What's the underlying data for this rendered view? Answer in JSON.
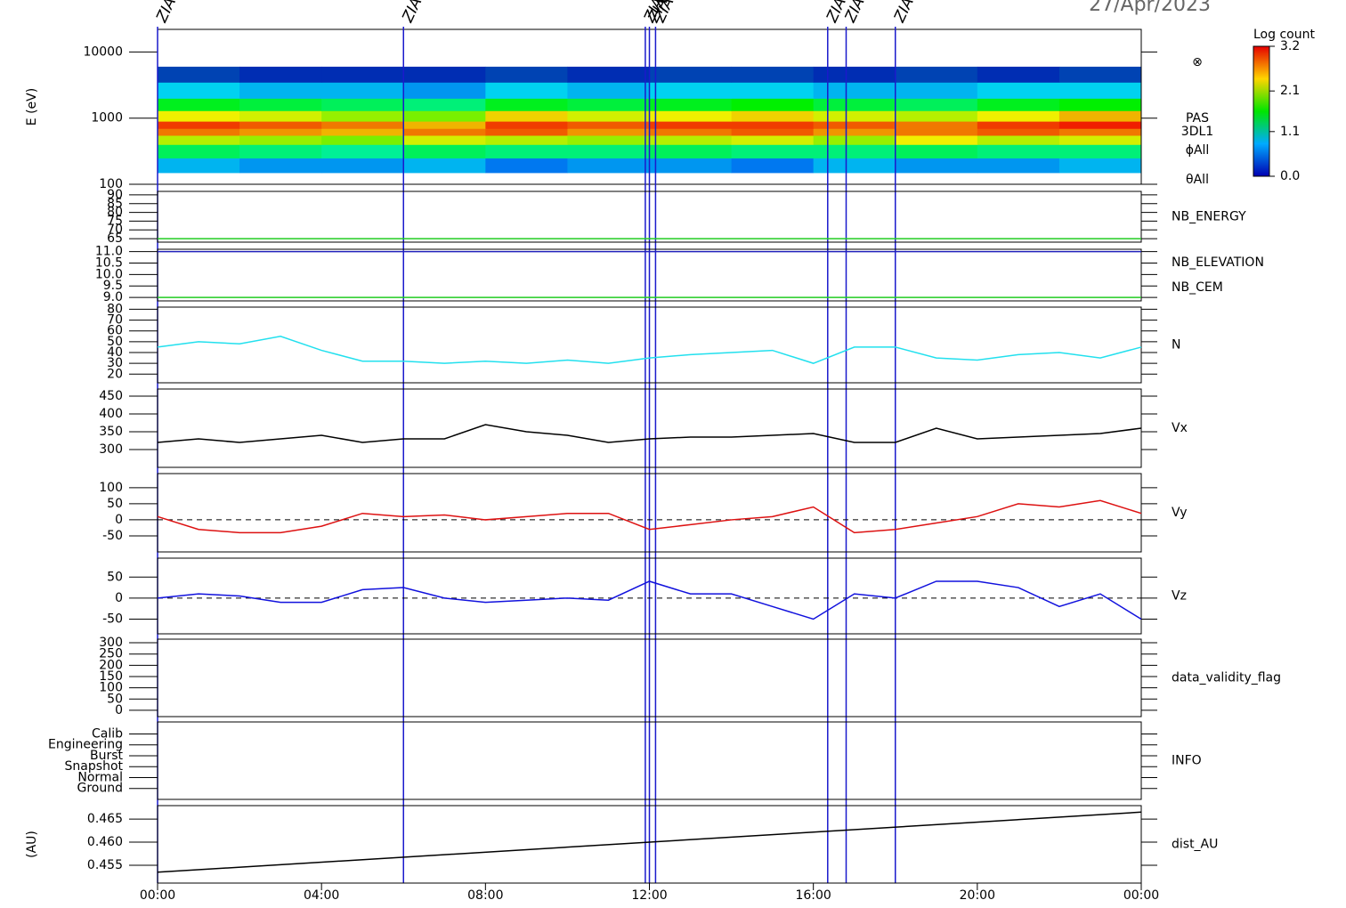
{
  "chart_data": [
    {
      "type": "heatmap",
      "title": "27/Apr/2023",
      "ylabel": "E (eV)",
      "log": true,
      "xlim": [
        0,
        24
      ],
      "ylim": [
        100,
        22000
      ],
      "yticks": [
        100,
        1000,
        10000
      ],
      "x_edges": [
        0,
        2,
        4,
        6,
        8,
        10,
        12,
        14,
        16,
        18,
        20,
        22,
        24
      ],
      "y_edges": [
        150,
        250,
        400,
        550,
        700,
        900,
        1300,
        2000,
        3500,
        6000
      ],
      "values": [
        [
          0.6,
          0.5,
          0.5,
          0.6,
          0.4,
          0.5,
          0.5,
          0.4,
          0.6,
          0.5,
          0.5,
          0.6
        ],
        [
          1.3,
          1.2,
          1.1,
          1.3,
          1.2,
          1.2,
          1.3,
          1.2,
          1.2,
          1.3,
          1.2,
          1.2
        ],
        [
          2.2,
          2.1,
          2.0,
          2.3,
          2.2,
          2.1,
          2.2,
          2.3,
          2.1,
          2.4,
          2.2,
          2.3
        ],
        [
          2.8,
          2.7,
          2.6,
          2.8,
          2.9,
          2.7,
          2.8,
          2.9,
          2.7,
          2.8,
          2.9,
          2.8
        ],
        [
          3.0,
          2.9,
          2.8,
          2.6,
          3.0,
          2.9,
          3.0,
          3.0,
          2.9,
          2.8,
          3.0,
          3.1
        ],
        [
          2.4,
          2.3,
          2.1,
          2.0,
          2.5,
          2.3,
          2.4,
          2.5,
          2.3,
          2.2,
          2.4,
          2.6
        ],
        [
          1.5,
          1.4,
          1.3,
          1.2,
          1.5,
          1.4,
          1.5,
          1.6,
          1.4,
          1.3,
          1.5,
          1.6
        ],
        [
          0.7,
          0.6,
          0.6,
          0.5,
          0.7,
          0.6,
          0.7,
          0.7,
          0.6,
          0.6,
          0.7,
          0.7
        ],
        [
          0.3,
          0.2,
          0.2,
          0.2,
          0.3,
          0.2,
          0.3,
          0.3,
          0.2,
          0.3,
          0.2,
          0.3
        ]
      ],
      "annotations": [
        "⊗",
        "PAS",
        "3DL1",
        "ϕAll",
        "θAll"
      ],
      "colorbar": {
        "title": "Log count",
        "lim": [
          0,
          3.2
        ],
        "ticks": [
          {
            "value": 0,
            "label": "0.0"
          },
          1.1,
          2.1,
          3.2
        ]
      },
      "events": [
        {
          "x": 0,
          "label": "ZIAS"
        },
        {
          "x": 6,
          "label": "ZIAS"
        },
        {
          "x": 11.9,
          "label": "ZIA"
        },
        {
          "x": 12.0,
          "label": "ZIAS"
        },
        {
          "x": 12.15,
          "label": "ZIAS"
        },
        {
          "x": 16.35,
          "label": "ZIA"
        },
        {
          "x": 16.8,
          "label": "ZIAS"
        },
        {
          "x": 18.0,
          "label": "ZIAS"
        }
      ]
    },
    {
      "type": "line",
      "xlim": [
        0,
        24
      ],
      "ylim": [
        63,
        92
      ],
      "yticks": [
        65,
        70,
        75,
        80,
        85,
        90
      ],
      "x": [
        0,
        24
      ],
      "series": [
        {
          "name": "NB_ENERGY",
          "color": "#22cc22",
          "values": [
            65,
            65
          ]
        }
      ]
    },
    {
      "type": "line",
      "xlim": [
        0,
        24
      ],
      "ylim": [
        8.85,
        11.1
      ],
      "yticks": [
        {
          "value": 9,
          "label": "9.0"
        },
        9.5,
        {
          "value": 10,
          "label": "10.0"
        },
        10.5,
        {
          "value": 11,
          "label": "11.0"
        }
      ],
      "x": [
        0,
        24
      ],
      "series": [
        {
          "name": "NB_ELEVATION",
          "color": "#22cc22",
          "values": [
            9,
            9
          ]
        },
        {
          "name": "NB_CEM",
          "color": "#2222bb",
          "values": [
            11,
            11
          ]
        }
      ]
    },
    {
      "type": "line",
      "xlim": [
        0,
        24
      ],
      "ylim": [
        12,
        82
      ],
      "yticks": [
        20,
        30,
        40,
        50,
        60,
        70,
        80
      ],
      "x": [
        0,
        1,
        2,
        3,
        4,
        5,
        6,
        7,
        8,
        9,
        10,
        11,
        12,
        13,
        14,
        15,
        16,
        17,
        18,
        19,
        20,
        21,
        22,
        23,
        24
      ],
      "series": [
        {
          "name": "N",
          "color": "#22e0ee",
          "values": [
            45,
            50,
            48,
            55,
            42,
            32,
            32,
            30,
            32,
            30,
            33,
            30,
            35,
            38,
            40,
            42,
            30,
            45,
            45,
            35,
            33,
            38,
            40,
            35,
            45
          ]
        }
      ]
    },
    {
      "type": "line",
      "xlim": [
        0,
        24
      ],
      "ylim": [
        250,
        470
      ],
      "yticks": [
        300,
        350,
        400,
        450
      ],
      "x": [
        0,
        1,
        2,
        3,
        4,
        5,
        6,
        7,
        8,
        9,
        10,
        11,
        12,
        13,
        14,
        15,
        16,
        17,
        18,
        19,
        20,
        21,
        22,
        23,
        24
      ],
      "series": [
        {
          "name": "Vx",
          "color": "#000000",
          "values": [
            320,
            330,
            320,
            330,
            340,
            320,
            330,
            330,
            370,
            350,
            340,
            320,
            330,
            335,
            335,
            340,
            345,
            320,
            320,
            360,
            330,
            335,
            340,
            345,
            360
          ]
        }
      ]
    },
    {
      "type": "line",
      "xlim": [
        0,
        24
      ],
      "ylim": [
        -100,
        144
      ],
      "yticks": [
        -50,
        0,
        50,
        100
      ],
      "zero_line": true,
      "x": [
        0,
        1,
        2,
        3,
        4,
        5,
        6,
        7,
        8,
        9,
        10,
        11,
        12,
        13,
        14,
        15,
        16,
        17,
        18,
        19,
        20,
        21,
        22,
        23,
        24
      ],
      "series": [
        {
          "name": "Vy",
          "color": "#dd1111",
          "values": [
            10,
            -30,
            -40,
            -40,
            -20,
            20,
            10,
            15,
            0,
            10,
            20,
            20,
            -30,
            -15,
            0,
            10,
            40,
            -40,
            -30,
            -10,
            10,
            50,
            40,
            60,
            20
          ]
        }
      ]
    },
    {
      "type": "line",
      "xlim": [
        0,
        24
      ],
      "ylim": [
        -85,
        95
      ],
      "yticks": [
        -50,
        0,
        50
      ],
      "zero_line": true,
      "x": [
        0,
        1,
        2,
        3,
        4,
        5,
        6,
        7,
        8,
        9,
        10,
        11,
        12,
        13,
        14,
        15,
        16,
        17,
        18,
        19,
        20,
        21,
        22,
        23,
        24
      ],
      "series": [
        {
          "name": "Vz",
          "color": "#1111dd",
          "values": [
            0,
            10,
            5,
            -10,
            -10,
            20,
            25,
            0,
            -10,
            -5,
            0,
            -5,
            40,
            10,
            10,
            -20,
            -50,
            10,
            0,
            40,
            40,
            25,
            -20,
            10,
            -50
          ]
        }
      ]
    },
    {
      "type": "line",
      "label": "data_validity_flag",
      "xlim": [
        0,
        24
      ],
      "ylim": [
        -28,
        316
      ],
      "yticks": [
        0,
        50,
        100,
        150,
        200,
        250,
        300
      ]
    },
    {
      "type": "line",
      "label": "INFO",
      "xlim": [
        0,
        24
      ],
      "ylim": [
        0,
        7.1
      ],
      "yticks": [
        {
          "value": 1,
          "label": "Ground"
        },
        {
          "value": 2,
          "label": "Normal"
        },
        {
          "value": 3,
          "label": "Snapshot"
        },
        {
          "value": 4,
          "label": "Burst"
        },
        {
          "value": 5,
          "label": "Engineering"
        },
        {
          "value": 6,
          "label": "Calib"
        }
      ]
    },
    {
      "type": "line",
      "ylabel": "(AU)",
      "xlim": [
        0,
        24
      ],
      "ylim": [
        0.45115,
        0.4679
      ],
      "yticks": [
        0.455,
        {
          "value": 0.46,
          "label": "0.460"
        },
        0.465
      ],
      "xticks": [
        {
          "value": 0,
          "label": "00:00"
        },
        {
          "value": 4,
          "label": "04:00"
        },
        {
          "value": 8,
          "label": "08:00"
        },
        {
          "value": 12,
          "label": "12:00"
        },
        {
          "value": 16,
          "label": "16:00"
        },
        {
          "value": 20,
          "label": "20:00"
        },
        {
          "value": 24,
          "label": "00:00"
        }
      ],
      "x": [
        0,
        24
      ],
      "series": [
        {
          "name": "dist_AU",
          "color": "#000000",
          "values": [
            0.4535,
            0.4665
          ]
        }
      ]
    }
  ]
}
